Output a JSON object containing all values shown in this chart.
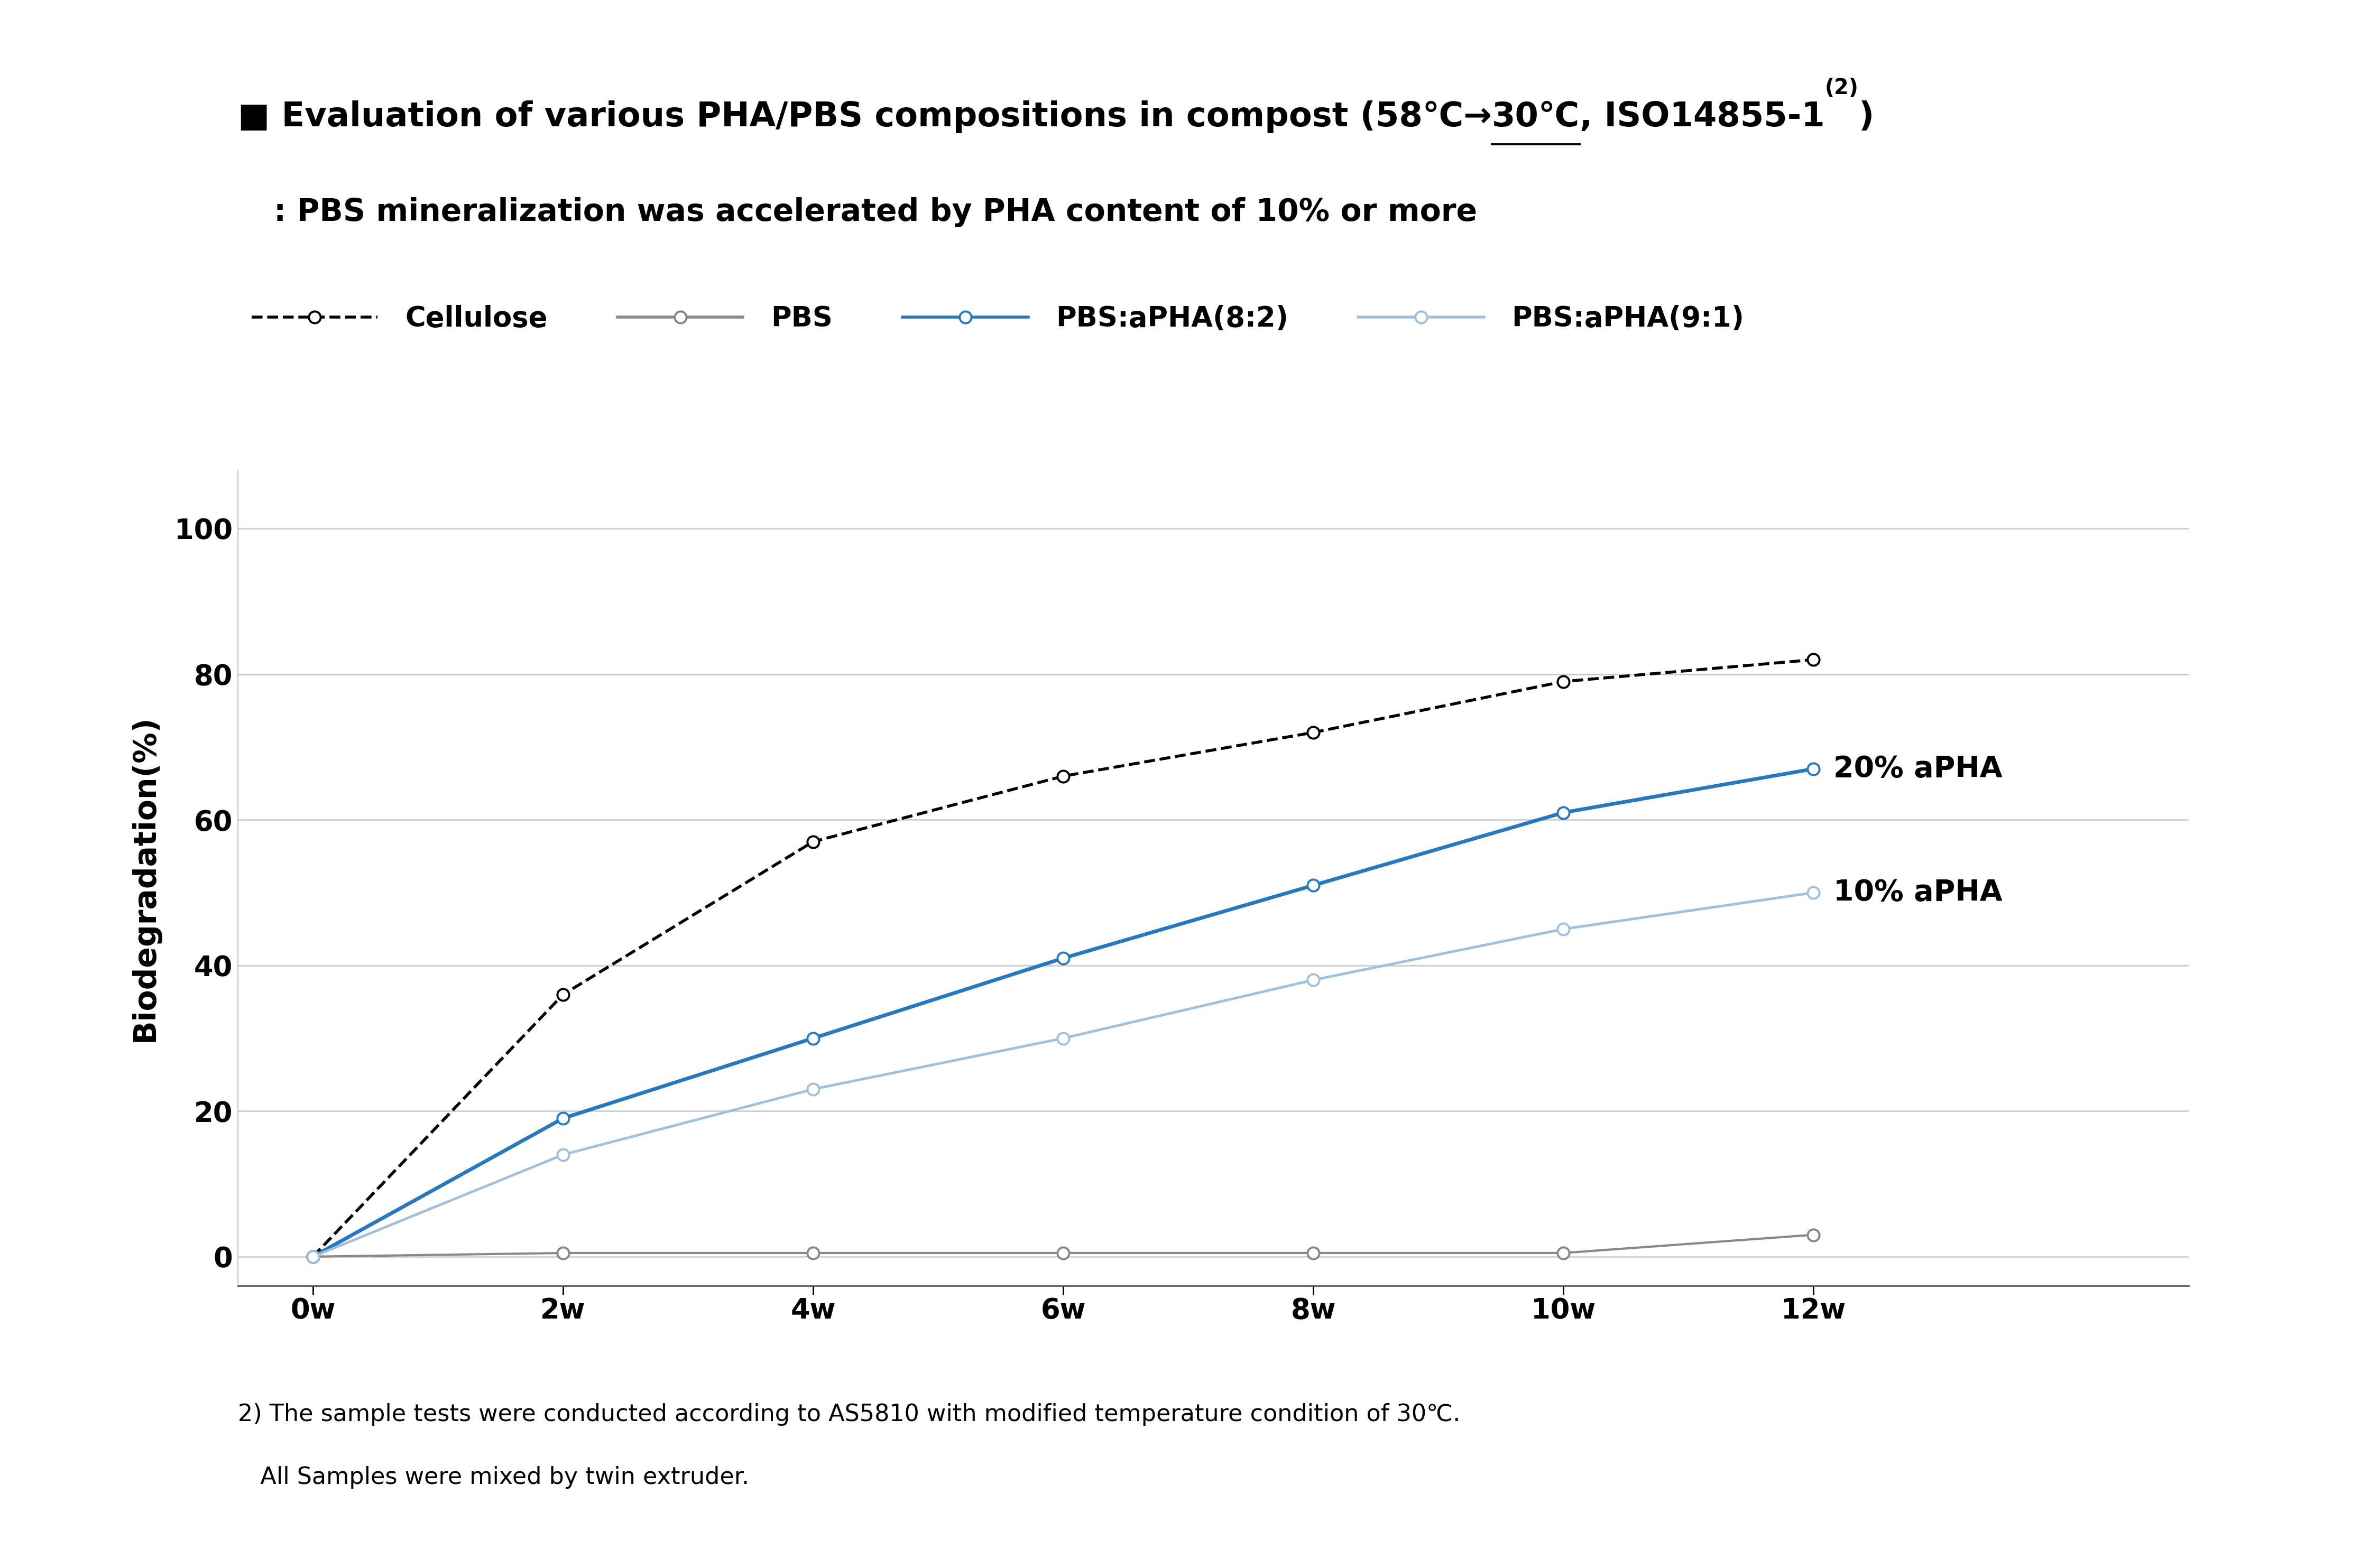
{
  "ylabel": "Biodegradation(%)",
  "xticklabels": [
    "0w",
    "2w",
    "4w",
    "6w",
    "8w",
    "10w",
    "12w"
  ],
  "yticks": [
    0,
    20,
    40,
    60,
    80,
    100
  ],
  "ylim": [
    -4,
    108
  ],
  "xlim": [
    -0.3,
    7.5
  ],
  "series": [
    {
      "label": "Cellulose",
      "color": "#000000",
      "linestyle": "dashed",
      "linewidth": 4.0,
      "markersize": 16,
      "markeredgewidth": 2.8,
      "x": [
        0,
        1,
        2,
        3,
        4,
        5,
        6
      ],
      "y": [
        0,
        36,
        57,
        66,
        72,
        79,
        82
      ]
    },
    {
      "label": "PBS",
      "color": "#888888",
      "linestyle": "solid",
      "linewidth": 3.0,
      "markersize": 16,
      "markeredgewidth": 2.8,
      "x": [
        0,
        1,
        2,
        3,
        4,
        5,
        6
      ],
      "y": [
        0,
        0.5,
        0.5,
        0.5,
        0.5,
        0.5,
        3
      ]
    },
    {
      "label": "PBS:aPHA(8:2)",
      "color": "#2878be",
      "linestyle": "solid",
      "linewidth": 5.0,
      "markersize": 16,
      "markeredgewidth": 2.8,
      "x": [
        0,
        1,
        2,
        3,
        4,
        5,
        6
      ],
      "y": [
        0,
        19,
        30,
        41,
        51,
        61,
        67
      ]
    },
    {
      "label": "PBS:aPHA(9:1)",
      "color": "#a0c0dc",
      "linestyle": "solid",
      "linewidth": 3.5,
      "markersize": 16,
      "markeredgewidth": 2.8,
      "x": [
        0,
        1,
        2,
        3,
        4,
        5,
        6
      ],
      "y": [
        0,
        14,
        23,
        30,
        38,
        45,
        50
      ]
    }
  ],
  "ann20_text": "20% aPHA",
  "ann20_x": 6,
  "ann20_y": 67,
  "ann10_text": "10% aPHA",
  "ann10_x": 6,
  "ann10_y": 50,
  "background_color": "#ffffff",
  "title_part1": "■ Evaluation of various PHA/PBS compositions in compost (58℃→",
  "title_underlined": "30℃",
  "title_part2": ", ISO14855-1",
  "title_super": "(2)",
  "title_end": ")",
  "subtitle": ": PBS mineralization was accelerated by PHA content of 10% or more",
  "footnote1": "2) The sample tests were conducted according to AS5810 with modified temperature condition of 30℃.",
  "footnote2": "   All Samples were mixed by twin extruder.",
  "title_fontsize": 46,
  "subtitle_fontsize": 42,
  "axis_label_fontsize": 42,
  "tick_fontsize": 38,
  "legend_fontsize": 38,
  "annotation_fontsize": 40,
  "footnote_fontsize": 32
}
